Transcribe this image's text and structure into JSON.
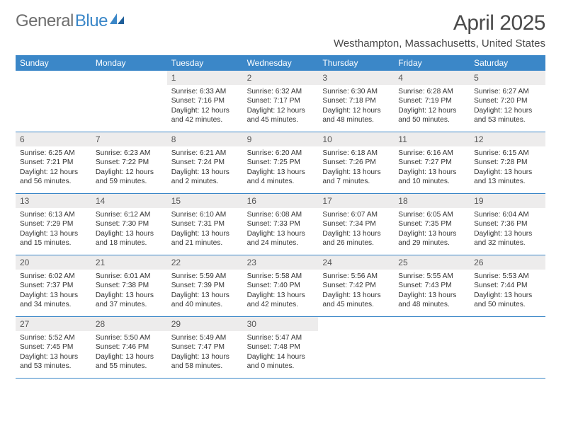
{
  "logo": {
    "general": "General",
    "blue": "Blue"
  },
  "title": {
    "month": "April 2025",
    "location": "Westhampton, Massachusetts, United States"
  },
  "colors": {
    "header_bg": "#3b87c8",
    "header_text": "#ffffff",
    "daynum_bg": "#edecec",
    "body_text": "#333333",
    "rule": "#3b87c8",
    "page_bg": "#ffffff",
    "logo_gray": "#6e6e6e",
    "logo_blue": "#3b87c8"
  },
  "dayNames": [
    "Sunday",
    "Monday",
    "Tuesday",
    "Wednesday",
    "Thursday",
    "Friday",
    "Saturday"
  ],
  "weeks": [
    [
      {
        "blank": true
      },
      {
        "blank": true
      },
      {
        "num": "1",
        "sunrise": "Sunrise: 6:33 AM",
        "sunset": "Sunset: 7:16 PM",
        "day1": "Daylight: 12 hours",
        "day2": "and 42 minutes."
      },
      {
        "num": "2",
        "sunrise": "Sunrise: 6:32 AM",
        "sunset": "Sunset: 7:17 PM",
        "day1": "Daylight: 12 hours",
        "day2": "and 45 minutes."
      },
      {
        "num": "3",
        "sunrise": "Sunrise: 6:30 AM",
        "sunset": "Sunset: 7:18 PM",
        "day1": "Daylight: 12 hours",
        "day2": "and 48 minutes."
      },
      {
        "num": "4",
        "sunrise": "Sunrise: 6:28 AM",
        "sunset": "Sunset: 7:19 PM",
        "day1": "Daylight: 12 hours",
        "day2": "and 50 minutes."
      },
      {
        "num": "5",
        "sunrise": "Sunrise: 6:27 AM",
        "sunset": "Sunset: 7:20 PM",
        "day1": "Daylight: 12 hours",
        "day2": "and 53 minutes."
      }
    ],
    [
      {
        "num": "6",
        "sunrise": "Sunrise: 6:25 AM",
        "sunset": "Sunset: 7:21 PM",
        "day1": "Daylight: 12 hours",
        "day2": "and 56 minutes."
      },
      {
        "num": "7",
        "sunrise": "Sunrise: 6:23 AM",
        "sunset": "Sunset: 7:22 PM",
        "day1": "Daylight: 12 hours",
        "day2": "and 59 minutes."
      },
      {
        "num": "8",
        "sunrise": "Sunrise: 6:21 AM",
        "sunset": "Sunset: 7:24 PM",
        "day1": "Daylight: 13 hours",
        "day2": "and 2 minutes."
      },
      {
        "num": "9",
        "sunrise": "Sunrise: 6:20 AM",
        "sunset": "Sunset: 7:25 PM",
        "day1": "Daylight: 13 hours",
        "day2": "and 4 minutes."
      },
      {
        "num": "10",
        "sunrise": "Sunrise: 6:18 AM",
        "sunset": "Sunset: 7:26 PM",
        "day1": "Daylight: 13 hours",
        "day2": "and 7 minutes."
      },
      {
        "num": "11",
        "sunrise": "Sunrise: 6:16 AM",
        "sunset": "Sunset: 7:27 PM",
        "day1": "Daylight: 13 hours",
        "day2": "and 10 minutes."
      },
      {
        "num": "12",
        "sunrise": "Sunrise: 6:15 AM",
        "sunset": "Sunset: 7:28 PM",
        "day1": "Daylight: 13 hours",
        "day2": "and 13 minutes."
      }
    ],
    [
      {
        "num": "13",
        "sunrise": "Sunrise: 6:13 AM",
        "sunset": "Sunset: 7:29 PM",
        "day1": "Daylight: 13 hours",
        "day2": "and 15 minutes."
      },
      {
        "num": "14",
        "sunrise": "Sunrise: 6:12 AM",
        "sunset": "Sunset: 7:30 PM",
        "day1": "Daylight: 13 hours",
        "day2": "and 18 minutes."
      },
      {
        "num": "15",
        "sunrise": "Sunrise: 6:10 AM",
        "sunset": "Sunset: 7:31 PM",
        "day1": "Daylight: 13 hours",
        "day2": "and 21 minutes."
      },
      {
        "num": "16",
        "sunrise": "Sunrise: 6:08 AM",
        "sunset": "Sunset: 7:33 PM",
        "day1": "Daylight: 13 hours",
        "day2": "and 24 minutes."
      },
      {
        "num": "17",
        "sunrise": "Sunrise: 6:07 AM",
        "sunset": "Sunset: 7:34 PM",
        "day1": "Daylight: 13 hours",
        "day2": "and 26 minutes."
      },
      {
        "num": "18",
        "sunrise": "Sunrise: 6:05 AM",
        "sunset": "Sunset: 7:35 PM",
        "day1": "Daylight: 13 hours",
        "day2": "and 29 minutes."
      },
      {
        "num": "19",
        "sunrise": "Sunrise: 6:04 AM",
        "sunset": "Sunset: 7:36 PM",
        "day1": "Daylight: 13 hours",
        "day2": "and 32 minutes."
      }
    ],
    [
      {
        "num": "20",
        "sunrise": "Sunrise: 6:02 AM",
        "sunset": "Sunset: 7:37 PM",
        "day1": "Daylight: 13 hours",
        "day2": "and 34 minutes."
      },
      {
        "num": "21",
        "sunrise": "Sunrise: 6:01 AM",
        "sunset": "Sunset: 7:38 PM",
        "day1": "Daylight: 13 hours",
        "day2": "and 37 minutes."
      },
      {
        "num": "22",
        "sunrise": "Sunrise: 5:59 AM",
        "sunset": "Sunset: 7:39 PM",
        "day1": "Daylight: 13 hours",
        "day2": "and 40 minutes."
      },
      {
        "num": "23",
        "sunrise": "Sunrise: 5:58 AM",
        "sunset": "Sunset: 7:40 PM",
        "day1": "Daylight: 13 hours",
        "day2": "and 42 minutes."
      },
      {
        "num": "24",
        "sunrise": "Sunrise: 5:56 AM",
        "sunset": "Sunset: 7:42 PM",
        "day1": "Daylight: 13 hours",
        "day2": "and 45 minutes."
      },
      {
        "num": "25",
        "sunrise": "Sunrise: 5:55 AM",
        "sunset": "Sunset: 7:43 PM",
        "day1": "Daylight: 13 hours",
        "day2": "and 48 minutes."
      },
      {
        "num": "26",
        "sunrise": "Sunrise: 5:53 AM",
        "sunset": "Sunset: 7:44 PM",
        "day1": "Daylight: 13 hours",
        "day2": "and 50 minutes."
      }
    ],
    [
      {
        "num": "27",
        "sunrise": "Sunrise: 5:52 AM",
        "sunset": "Sunset: 7:45 PM",
        "day1": "Daylight: 13 hours",
        "day2": "and 53 minutes."
      },
      {
        "num": "28",
        "sunrise": "Sunrise: 5:50 AM",
        "sunset": "Sunset: 7:46 PM",
        "day1": "Daylight: 13 hours",
        "day2": "and 55 minutes."
      },
      {
        "num": "29",
        "sunrise": "Sunrise: 5:49 AM",
        "sunset": "Sunset: 7:47 PM",
        "day1": "Daylight: 13 hours",
        "day2": "and 58 minutes."
      },
      {
        "num": "30",
        "sunrise": "Sunrise: 5:47 AM",
        "sunset": "Sunset: 7:48 PM",
        "day1": "Daylight: 14 hours",
        "day2": "and 0 minutes."
      },
      {
        "blank": true
      },
      {
        "blank": true
      },
      {
        "blank": true
      }
    ]
  ]
}
